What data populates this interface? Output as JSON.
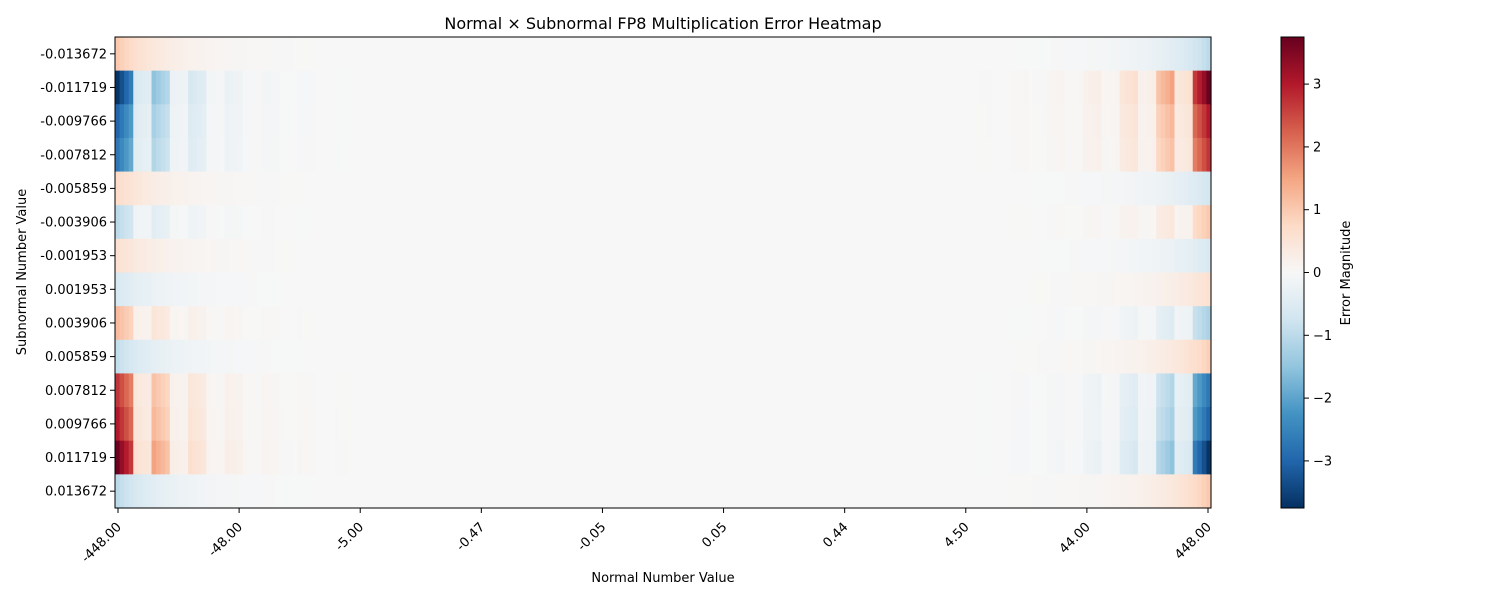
{
  "chart_data": {
    "type": "heatmap",
    "title": "Normal × Subnormal FP8 Multiplication Error Heatmap",
    "xlabel": "Normal Number Value",
    "ylabel": "Subnormal Number Value",
    "x_tick_labels": [
      "-448.00",
      "-48.00",
      "-5.00",
      "-0.47",
      "-0.05",
      "0.05",
      "0.44",
      "4.50",
      "44.00",
      "448.00"
    ],
    "y_tick_labels": [
      "-0.013672",
      "-0.011719",
      "-0.009766",
      "-0.007812",
      "-0.005859",
      "-0.003906",
      "-0.001953",
      "0.001953",
      "0.003906",
      "0.005859",
      "0.007812",
      "0.009766",
      "0.011719",
      "0.013672"
    ],
    "colorbar": {
      "label": "Error Magnitude",
      "range": [
        -3.75,
        3.75
      ],
      "ticks": [
        "−3",
        "−2",
        "−1",
        "0",
        "1",
        "2",
        "3"
      ],
      "tick_values": [
        -3,
        -2,
        -1,
        0,
        1,
        2,
        3
      ],
      "colormap": "RdBu_r"
    },
    "x_columns": 240,
    "grid": false,
    "edge_error_profile": {
      "description_rows": "rows -0.011719 and 0.011719 show the largest magnitude (~±3.7) at |x|=448; error decays toward 0 for |x| < ~5",
      "row_max_abs_error": [
        1.0,
        3.7,
        3.0,
        2.7,
        0.7,
        1.0,
        0.6,
        0.6,
        1.2,
        0.9,
        2.7,
        3.0,
        3.7,
        1.0
      ]
    }
  }
}
